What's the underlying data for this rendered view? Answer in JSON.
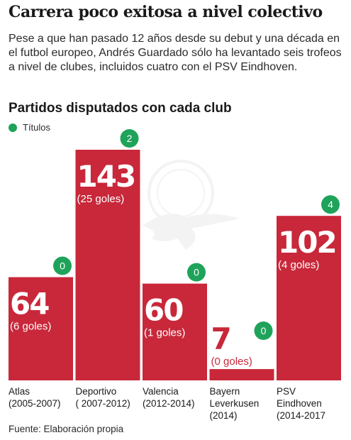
{
  "headline": "Carrera poco exitosa a nivel colectivo",
  "subtitle": "Pese a que han pasado 12 años desde su debut y una década en el futbol europeo, Andrés Guardado sólo ha levantado seis trofeos a nivel de clubes, incluidos cuatro con el PSV Eindhoven.",
  "source": "Fuente: Elaboración propia",
  "colors": {
    "bar": "#c8283a",
    "badge": "#1fa35a",
    "bar_text": "#ffffff",
    "goals_text_dark": "#c8283a"
  },
  "chart_data": {
    "type": "bar",
    "title": "Partidos disputados con cada club",
    "legend": {
      "label": "Títulos",
      "placement": "top-left"
    },
    "categories": [
      "Atlas\n(2005-2007)",
      "Deportivo\n( 2007-2012)",
      "Valencia\n(2012-2014)",
      "Bayern\nLeverkusen\n(2014)",
      "PSV\nEindhoven\n(2014-2017"
    ],
    "series": [
      {
        "values": [
          64,
          143,
          60,
          7,
          102
        ]
      }
    ],
    "goals_labels": [
      "(6 goles)",
      "(25 goles)",
      "(1 goles)",
      "(0 goles)",
      "(4 goles)"
    ],
    "titles": [
      0,
      2,
      0,
      0,
      4
    ],
    "ylim": [
      0,
      143
    ],
    "grid": false
  }
}
